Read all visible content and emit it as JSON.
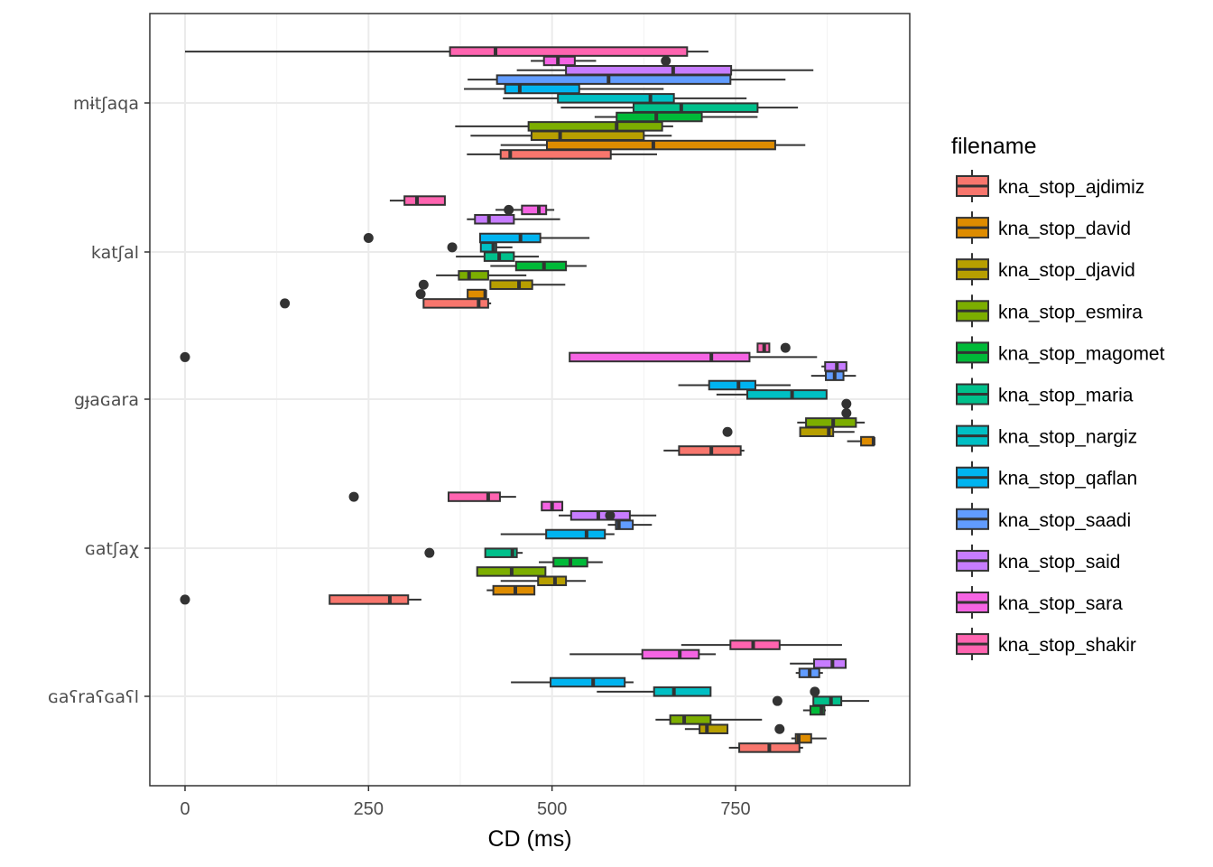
{
  "chart_data": {
    "type": "boxplot",
    "orientation": "horizontal",
    "title": "",
    "xlabel": "CD (ms)",
    "ylabel": "",
    "xlim": [
      -25,
      990
    ],
    "xticks": [
      0,
      250,
      500,
      750
    ],
    "xtick_labels": [
      "0",
      "250",
      "500",
      "750"
    ],
    "grid": true,
    "theme": "bw",
    "legend": {
      "title": "filename",
      "position": "right",
      "entries": [
        {
          "name": "kna_stop_ajdimiz",
          "color": "#F8766D"
        },
        {
          "name": "kna_stop_david",
          "color": "#DE8C00"
        },
        {
          "name": "kna_stop_djavid",
          "color": "#B79F00"
        },
        {
          "name": "kna_stop_esmira",
          "color": "#7CAE00"
        },
        {
          "name": "kna_stop_magomet",
          "color": "#00BA38"
        },
        {
          "name": "kna_stop_maria",
          "color": "#00C08B"
        },
        {
          "name": "kna_stop_nargiz",
          "color": "#00BFC4"
        },
        {
          "name": "kna_stop_qaflan",
          "color": "#00B4F0"
        },
        {
          "name": "kna_stop_saadi",
          "color": "#619CFF"
        },
        {
          "name": "kna_stop_said",
          "color": "#C77CFF"
        },
        {
          "name": "kna_stop_sara",
          "color": "#F564E3"
        },
        {
          "name": "kna_stop_shakir",
          "color": "#FF64B0"
        }
      ]
    },
    "categories": [
      "mɨtʃaqa",
      "katʃal",
      "gɟaɢara",
      "ɢatʃaχ",
      "ɢaʕraʕɢaʕl"
    ],
    "groups": [
      {
        "category": "mɨtʃaqa",
        "boxes": [
          {
            "series": "kna_stop_ajdimiz",
            "lo": 384,
            "q1": 430,
            "median": 443,
            "q3": 580,
            "hi": 643,
            "outliers": []
          },
          {
            "series": "kna_stop_david",
            "lo": 430,
            "q1": 493,
            "median": 638,
            "q3": 804,
            "hi": 845,
            "outliers": []
          },
          {
            "series": "kna_stop_djavid",
            "lo": 389,
            "q1": 472,
            "median": 511,
            "q3": 625,
            "hi": 663,
            "outliers": []
          },
          {
            "series": "kna_stop_esmira",
            "lo": 368,
            "q1": 468,
            "median": 588,
            "q3": 650,
            "hi": 665,
            "outliers": []
          },
          {
            "series": "kna_stop_magomet",
            "lo": 558,
            "q1": 588,
            "median": 642,
            "q3": 704,
            "hi": 780,
            "outliers": []
          },
          {
            "series": "kna_stop_maria",
            "lo": 512,
            "q1": 611,
            "median": 676,
            "q3": 780,
            "hi": 835,
            "outliers": []
          },
          {
            "series": "kna_stop_nargiz",
            "lo": 433,
            "q1": 508,
            "median": 634,
            "q3": 666,
            "hi": 765,
            "outliers": []
          },
          {
            "series": "kna_stop_qaflan",
            "lo": 380,
            "q1": 436,
            "median": 456,
            "q3": 537,
            "hi": 652,
            "outliers": []
          },
          {
            "series": "kna_stop_saadi",
            "lo": 385,
            "q1": 425,
            "median": 577,
            "q3": 743,
            "hi": 818,
            "outliers": []
          },
          {
            "series": "kna_stop_said",
            "lo": 452,
            "q1": 519,
            "median": 665,
            "q3": 744,
            "hi": 856,
            "outliers": []
          },
          {
            "series": "kna_stop_sara",
            "lo": 471,
            "q1": 489,
            "median": 508,
            "q3": 531,
            "hi": 560,
            "outliers": [
              655
            ]
          },
          {
            "series": "kna_stop_shakir",
            "lo": 0,
            "q1": 361,
            "median": 423,
            "q3": 684,
            "hi": 713,
            "outliers": []
          }
        ]
      },
      {
        "category": "katʃal",
        "boxes": [
          {
            "series": "kna_stop_ajdimiz",
            "lo": 325,
            "q1": 325,
            "median": 400,
            "q3": 413,
            "hi": 417,
            "outliers": [
              136
            ]
          },
          {
            "series": "kna_stop_david",
            "lo": 385,
            "q1": 385,
            "median": 409,
            "q3": 409,
            "hi": 409,
            "outliers": [
              321
            ]
          },
          {
            "series": "kna_stop_djavid",
            "lo": 416,
            "q1": 416,
            "median": 455,
            "q3": 473,
            "hi": 518,
            "outliers": [
              325
            ]
          },
          {
            "series": "kna_stop_esmira",
            "lo": 342,
            "q1": 373,
            "median": 387,
            "q3": 413,
            "hi": 465,
            "outliers": []
          },
          {
            "series": "kna_stop_magomet",
            "lo": 416,
            "q1": 451,
            "median": 489,
            "q3": 519,
            "hi": 547,
            "outliers": []
          },
          {
            "series": "kna_stop_maria",
            "lo": 369,
            "q1": 408,
            "median": 428,
            "q3": 448,
            "hi": 482,
            "outliers": []
          },
          {
            "series": "kna_stop_nargiz",
            "lo": 403,
            "q1": 403,
            "median": 420,
            "q3": 424,
            "hi": 446,
            "outliers": [
              364
            ]
          },
          {
            "series": "kna_stop_qaflan",
            "lo": 402,
            "q1": 402,
            "median": 457,
            "q3": 484,
            "hi": 551,
            "outliers": [
              250
            ]
          },
          {
            "series": "kna_stop_saadi",
            "lo": null,
            "q1": null,
            "median": null,
            "q3": null,
            "hi": null,
            "outliers": []
          },
          {
            "series": "kna_stop_said",
            "lo": 384,
            "q1": 395,
            "median": 414,
            "q3": 448,
            "hi": 511,
            "outliers": []
          },
          {
            "series": "kna_stop_sara",
            "lo": 423,
            "q1": 459,
            "median": 482,
            "q3": 492,
            "hi": 503,
            "outliers": [
              441
            ]
          },
          {
            "series": "kna_stop_shakir",
            "lo": 279,
            "q1": 299,
            "median": 316,
            "q3": 354,
            "hi": 354,
            "outliers": []
          }
        ]
      },
      {
        "category": "gɟaɢara",
        "boxes": [
          {
            "series": "kna_stop_ajdimiz",
            "lo": 652,
            "q1": 673,
            "median": 717,
            "q3": 757,
            "hi": 762,
            "outliers": []
          },
          {
            "series": "kna_stop_david",
            "lo": 902,
            "q1": 921,
            "median": 938,
            "q3": 938,
            "hi": 938,
            "outliers": []
          },
          {
            "series": "kna_stop_djavid",
            "lo": 838,
            "q1": 838,
            "median": 877,
            "q3": 883,
            "hi": 912,
            "outliers": [
              739
            ]
          },
          {
            "series": "kna_stop_esmira",
            "lo": 834,
            "q1": 846,
            "median": 883,
            "q3": 914,
            "hi": 926,
            "outliers": []
          },
          {
            "series": "kna_stop_magomet",
            "lo": null,
            "q1": null,
            "median": null,
            "q3": null,
            "hi": null,
            "outliers": [
              901
            ]
          },
          {
            "series": "kna_stop_maria",
            "lo": null,
            "q1": null,
            "median": null,
            "q3": null,
            "hi": null,
            "outliers": [
              901
            ]
          },
          {
            "series": "kna_stop_nargiz",
            "lo": 724,
            "q1": 766,
            "median": 827,
            "q3": 874,
            "hi": 874,
            "outliers": []
          },
          {
            "series": "kna_stop_qaflan",
            "lo": 672,
            "q1": 714,
            "median": 754,
            "q3": 777,
            "hi": 825,
            "outliers": []
          },
          {
            "series": "kna_stop_saadi",
            "lo": 853,
            "q1": 873,
            "median": 885,
            "q3": 897,
            "hi": 914,
            "outliers": []
          },
          {
            "series": "kna_stop_said",
            "lo": 867,
            "q1": 872,
            "median": 888,
            "q3": 901,
            "hi": 901,
            "outliers": []
          },
          {
            "series": "kna_stop_sara",
            "lo": 524,
            "q1": 524,
            "median": 717,
            "q3": 769,
            "hi": 861,
            "outliers": [
              0
            ]
          },
          {
            "series": "kna_stop_shakir",
            "lo": 780,
            "q1": 780,
            "median": 789,
            "q3": 796,
            "hi": 796,
            "outliers": [
              818
            ]
          }
        ]
      },
      {
        "category": "ɢatʃaχ",
        "boxes": [
          {
            "series": "kna_stop_ajdimiz",
            "lo": 197,
            "q1": 197,
            "median": 279,
            "q3": 304,
            "hi": 322,
            "outliers": [
              0
            ]
          },
          {
            "series": "kna_stop_david",
            "lo": 411,
            "q1": 420,
            "median": 450,
            "q3": 476,
            "hi": 476,
            "outliers": []
          },
          {
            "series": "kna_stop_djavid",
            "lo": 430,
            "q1": 481,
            "median": 504,
            "q3": 519,
            "hi": 546,
            "outliers": []
          },
          {
            "series": "kna_stop_esmira",
            "lo": 398,
            "q1": 398,
            "median": 445,
            "q3": 491,
            "hi": 491,
            "outliers": []
          },
          {
            "series": "kna_stop_magomet",
            "lo": 482,
            "q1": 502,
            "median": 525,
            "q3": 548,
            "hi": 569,
            "outliers": []
          },
          {
            "series": "kna_stop_maria",
            "lo": 409,
            "q1": 409,
            "median": 446,
            "q3": 452,
            "hi": 460,
            "outliers": [
              333
            ]
          },
          {
            "series": "kna_stop_nargiz",
            "lo": null,
            "q1": null,
            "median": null,
            "q3": null,
            "hi": null,
            "outliers": []
          },
          {
            "series": "kna_stop_qaflan",
            "lo": 430,
            "q1": 492,
            "median": 547,
            "q3": 572,
            "hi": 585,
            "outliers": []
          },
          {
            "series": "kna_stop_saadi",
            "lo": 576,
            "q1": 587,
            "median": 591,
            "q3": 610,
            "hi": 636,
            "outliers": []
          },
          {
            "series": "kna_stop_said",
            "lo": 509,
            "q1": 526,
            "median": 563,
            "q3": 606,
            "hi": 642,
            "outliers": [
              579
            ]
          },
          {
            "series": "kna_stop_sara",
            "lo": 486,
            "q1": 486,
            "median": 500,
            "q3": 514,
            "hi": 514,
            "outliers": []
          },
          {
            "series": "kna_stop_shakir",
            "lo": 359,
            "q1": 359,
            "median": 413,
            "q3": 429,
            "hi": 451,
            "outliers": [
              230
            ]
          }
        ]
      },
      {
        "category": "ɢaʕraʕɢaʕl",
        "boxes": [
          {
            "series": "kna_stop_ajdimiz",
            "lo": 741,
            "q1": 755,
            "median": 796,
            "q3": 837,
            "hi": 842,
            "outliers": []
          },
          {
            "series": "kna_stop_david",
            "lo": 826,
            "q1": 832,
            "median": 836,
            "q3": 853,
            "hi": 874,
            "outliers": []
          },
          {
            "series": "kna_stop_djavid",
            "lo": 681,
            "q1": 701,
            "median": 711,
            "q3": 739,
            "hi": 739,
            "outliers": [
              810
            ]
          },
          {
            "series": "kna_stop_esmira",
            "lo": 641,
            "q1": 661,
            "median": 680,
            "q3": 716,
            "hi": 786,
            "outliers": []
          },
          {
            "series": "kna_stop_magomet",
            "lo": 842,
            "q1": 852,
            "median": 867,
            "q3": 871,
            "hi": 873,
            "outliers": []
          },
          {
            "series": "kna_stop_maria",
            "lo": 856,
            "q1": 856,
            "median": 880,
            "q3": 894,
            "hi": 932,
            "outliers": [
              807
            ]
          },
          {
            "series": "kna_stop_nargiz",
            "lo": 561,
            "q1": 639,
            "median": 666,
            "q3": 716,
            "hi": 716,
            "outliers": [
              858
            ]
          },
          {
            "series": "kna_stop_qaflan",
            "lo": 444,
            "q1": 498,
            "median": 556,
            "q3": 599,
            "hi": 611,
            "outliers": []
          },
          {
            "series": "kna_stop_saadi",
            "lo": 832,
            "q1": 837,
            "median": 851,
            "q3": 864,
            "hi": 869,
            "outliers": []
          },
          {
            "series": "kna_stop_said",
            "lo": 824,
            "q1": 857,
            "median": 882,
            "q3": 900,
            "hi": 900,
            "outliers": []
          },
          {
            "series": "kna_stop_sara",
            "lo": 524,
            "q1": 623,
            "median": 674,
            "q3": 700,
            "hi": 723,
            "outliers": []
          },
          {
            "series": "kna_stop_shakir",
            "lo": 676,
            "q1": 743,
            "median": 774,
            "q3": 810,
            "hi": 895,
            "outliers": []
          }
        ]
      }
    ]
  }
}
